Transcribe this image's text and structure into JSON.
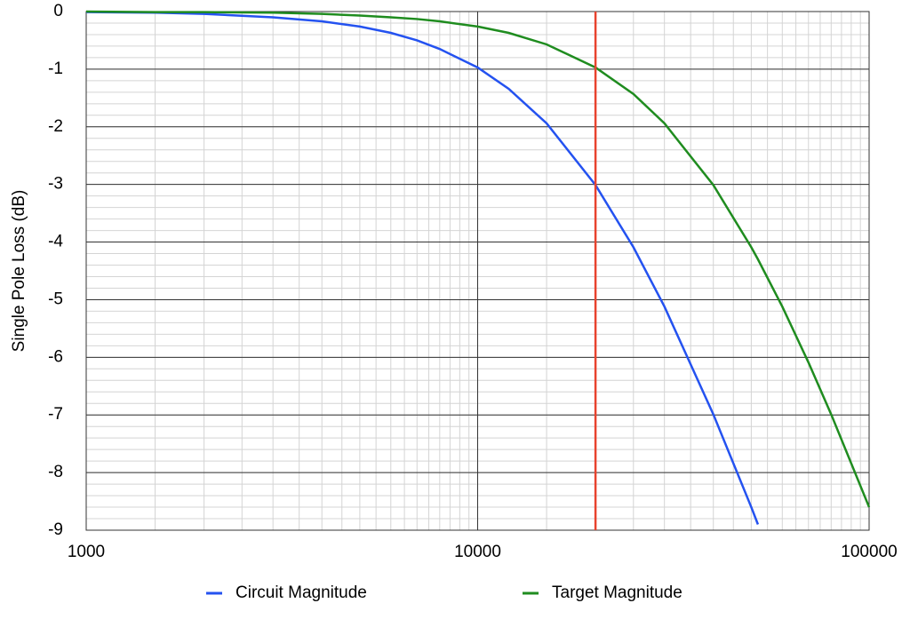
{
  "chart_data": {
    "type": "line",
    "y_label": "Single Pole Loss (dB)",
    "x": [
      1000,
      1500,
      2000,
      3000,
      4000,
      5000,
      6000,
      7000,
      8000,
      10000,
      12000,
      15000,
      20000,
      25000,
      30000,
      40000,
      50000,
      52000,
      60000,
      70000,
      80000,
      100000
    ],
    "series": [
      {
        "name": "Circuit Magnitude",
        "color": "#2452f0",
        "values": [
          -0.01,
          -0.02,
          -0.04,
          -0.1,
          -0.17,
          -0.26,
          -0.37,
          -0.5,
          -0.65,
          -0.97,
          -1.34,
          -1.94,
          -3.01,
          -4.09,
          -5.12,
          -6.99,
          -8.6,
          -8.9,
          null,
          null,
          null,
          null
        ]
      },
      {
        "name": "Target Magnitude",
        "color": "#1f8c1f",
        "values": [
          0,
          -0.01,
          -0.01,
          -0.02,
          -0.04,
          -0.07,
          -0.1,
          -0.13,
          -0.17,
          -0.26,
          -0.37,
          -0.57,
          -0.97,
          -1.43,
          -1.94,
          -3.01,
          -4.09,
          -4.3,
          -5.12,
          -6.09,
          -6.99,
          -8.6
        ]
      }
    ],
    "reference_line": {
      "x": 20000,
      "color": "#e8432e"
    },
    "xlim": [
      1000,
      100000
    ],
    "xticks": [
      1000,
      10000,
      100000
    ],
    "x_scale": "log",
    "ylim": [
      -9,
      0
    ],
    "yticks": [
      0,
      -1,
      -2,
      -3,
      -4,
      -5,
      -6,
      -7,
      -8,
      -9
    ],
    "grid": true,
    "legend": "bottom"
  }
}
